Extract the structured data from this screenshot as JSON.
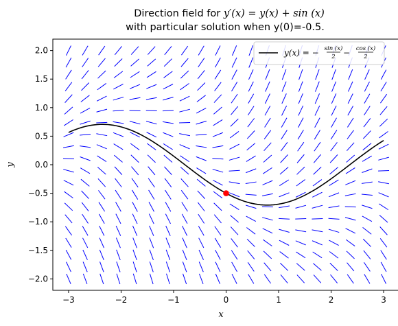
{
  "chart_data": {
    "type": "line",
    "title": {
      "prefix": "Direction field for ",
      "math": "y′(x) = y(x) + sin (x)",
      "line2": "with particular solution when y(0)=-0.5."
    },
    "xlabel": "x",
    "ylabel": "y",
    "xlim": [
      -3.3,
      3.3
    ],
    "ylim": [
      -2.2,
      2.2
    ],
    "xticks": [
      -3,
      -2,
      -1,
      0,
      1,
      2,
      3
    ],
    "xtick_labels": [
      "−3",
      "−2",
      "−1",
      "0",
      "1",
      "2",
      "3"
    ],
    "yticks": [
      -2.0,
      -1.5,
      -1.0,
      -0.5,
      0.0,
      0.5,
      1.0,
      1.5,
      2.0
    ],
    "ytick_labels": [
      "−2.0",
      "−1.5",
      "−1.0",
      "−0.5",
      "0.0",
      "0.5",
      "1.0",
      "1.5",
      "2.0"
    ],
    "grid": false,
    "direction_field": {
      "x_range": [
        -3,
        3
      ],
      "y_range": [
        -2,
        2
      ],
      "nx": 20,
      "ny": 20,
      "color": "#0000ff"
    },
    "series": [
      {
        "label": {
          "lhs": "y(x) = −",
          "frac1_num": "sin (x)",
          "frac1_den": "2",
          "minus": "−",
          "frac2_num": "cos (x)",
          "frac2_den": "2"
        },
        "color": "#000000",
        "x_range": [
          -3,
          3
        ],
        "samples": 121
      }
    ],
    "initial_point": {
      "x": 0,
      "y": -0.5,
      "color": "#ff0000"
    },
    "legend_position": "upper-right"
  }
}
